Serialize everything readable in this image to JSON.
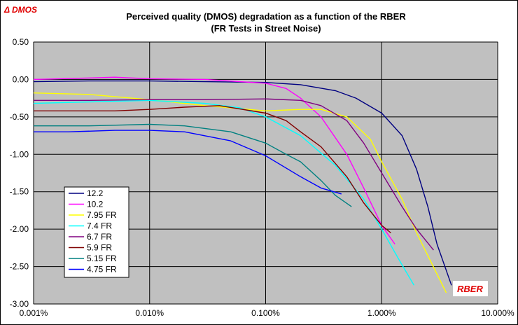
{
  "chart_data": {
    "type": "line",
    "title": "Perceived quality (DMOS) degradation as a function of the RBER",
    "subtitle": "(FR Tests in Street Noise)",
    "ylabel": "Δ  DMOS",
    "xlabel": "RBER",
    "x_scale": "log",
    "xlim": [
      0.001,
      10.0
    ],
    "ylim": [
      -3.0,
      0.5
    ],
    "x_ticks": [
      0.001,
      0.01,
      0.1,
      1.0,
      10.0
    ],
    "x_tick_labels": [
      "0.001%",
      "0.010%",
      "0.100%",
      "1.000%",
      "10.000%"
    ],
    "y_ticks": [
      0.5,
      0.0,
      -0.5,
      -1.0,
      -1.5,
      -2.0,
      -2.5,
      -3.0
    ],
    "y_tick_labels": [
      "0.50",
      "0.00",
      "-0.50",
      "-1.00",
      "-1.50",
      "-2.00",
      "-2.50",
      "-3.00"
    ],
    "grid": true,
    "plot_background": "#c0c0c0",
    "legend_position": "bottom-left",
    "series": [
      {
        "name": "12.2",
        "color": "#000080",
        "x": [
          0.001,
          0.003,
          0.01,
          0.03,
          0.1,
          0.2,
          0.4,
          0.6,
          1.0,
          1.5,
          2.0,
          2.5,
          3.0,
          4.0
        ],
        "y": [
          -0.03,
          -0.02,
          -0.02,
          -0.03,
          -0.04,
          -0.07,
          -0.15,
          -0.25,
          -0.45,
          -0.75,
          -1.2,
          -1.7,
          -2.2,
          -2.75
        ]
      },
      {
        "name": "10.2",
        "color": "#ff00ff",
        "x": [
          0.001,
          0.003,
          0.005,
          0.01,
          0.03,
          0.06,
          0.1,
          0.15,
          0.2,
          0.3,
          0.5,
          0.7,
          1.0,
          1.3
        ],
        "y": [
          0.0,
          0.02,
          0.03,
          0.01,
          0.0,
          -0.03,
          -0.05,
          -0.12,
          -0.25,
          -0.5,
          -1.0,
          -1.45,
          -1.95,
          -2.2
        ]
      },
      {
        "name": "7.95 FR",
        "color": "#ffff00",
        "x": [
          0.001,
          0.003,
          0.01,
          0.03,
          0.1,
          0.2,
          0.3,
          0.5,
          0.8,
          1.0,
          1.5,
          2.0,
          3.0,
          3.6
        ],
        "y": [
          -0.18,
          -0.2,
          -0.27,
          -0.35,
          -0.42,
          -0.4,
          -0.4,
          -0.5,
          -0.8,
          -1.1,
          -1.6,
          -2.05,
          -2.6,
          -2.85
        ]
      },
      {
        "name": "7.4 FR",
        "color": "#00ffff",
        "x": [
          0.001,
          0.003,
          0.01,
          0.03,
          0.06,
          0.1,
          0.2,
          0.4,
          0.7,
          1.0,
          1.4,
          1.9
        ],
        "y": [
          -0.32,
          -0.3,
          -0.28,
          -0.32,
          -0.38,
          -0.5,
          -0.75,
          -1.15,
          -1.6,
          -2.0,
          -2.4,
          -2.75
        ]
      },
      {
        "name": "6.7 FR",
        "color": "#800080",
        "x": [
          0.001,
          0.003,
          0.01,
          0.03,
          0.1,
          0.2,
          0.3,
          0.5,
          0.7,
          1.0,
          1.5,
          2.0,
          2.8
        ],
        "y": [
          -0.28,
          -0.28,
          -0.27,
          -0.27,
          -0.26,
          -0.28,
          -0.35,
          -0.55,
          -0.85,
          -1.25,
          -1.7,
          -2.0,
          -2.28
        ]
      },
      {
        "name": "5.9 FR",
        "color": "#800000",
        "x": [
          0.001,
          0.003,
          0.005,
          0.01,
          0.02,
          0.04,
          0.1,
          0.15,
          0.2,
          0.3,
          0.5,
          0.7,
          1.0,
          1.2
        ],
        "y": [
          -0.42,
          -0.42,
          -0.42,
          -0.4,
          -0.37,
          -0.35,
          -0.45,
          -0.55,
          -0.7,
          -0.9,
          -1.3,
          -1.65,
          -1.95,
          -2.05
        ]
      },
      {
        "name": "5.15 FR",
        "color": "#008080",
        "x": [
          0.001,
          0.003,
          0.01,
          0.02,
          0.05,
          0.1,
          0.15,
          0.2,
          0.3,
          0.4,
          0.55
        ],
        "y": [
          -0.62,
          -0.62,
          -0.6,
          -0.62,
          -0.7,
          -0.85,
          -1.0,
          -1.1,
          -1.35,
          -1.55,
          -1.7
        ]
      },
      {
        "name": "4.75 FR",
        "color": "#0000ff",
        "x": [
          0.001,
          0.002,
          0.005,
          0.01,
          0.02,
          0.05,
          0.1,
          0.2,
          0.3,
          0.45
        ],
        "y": [
          -0.7,
          -0.7,
          -0.68,
          -0.68,
          -0.7,
          -0.82,
          -1.02,
          -1.3,
          -1.45,
          -1.53
        ]
      }
    ]
  }
}
